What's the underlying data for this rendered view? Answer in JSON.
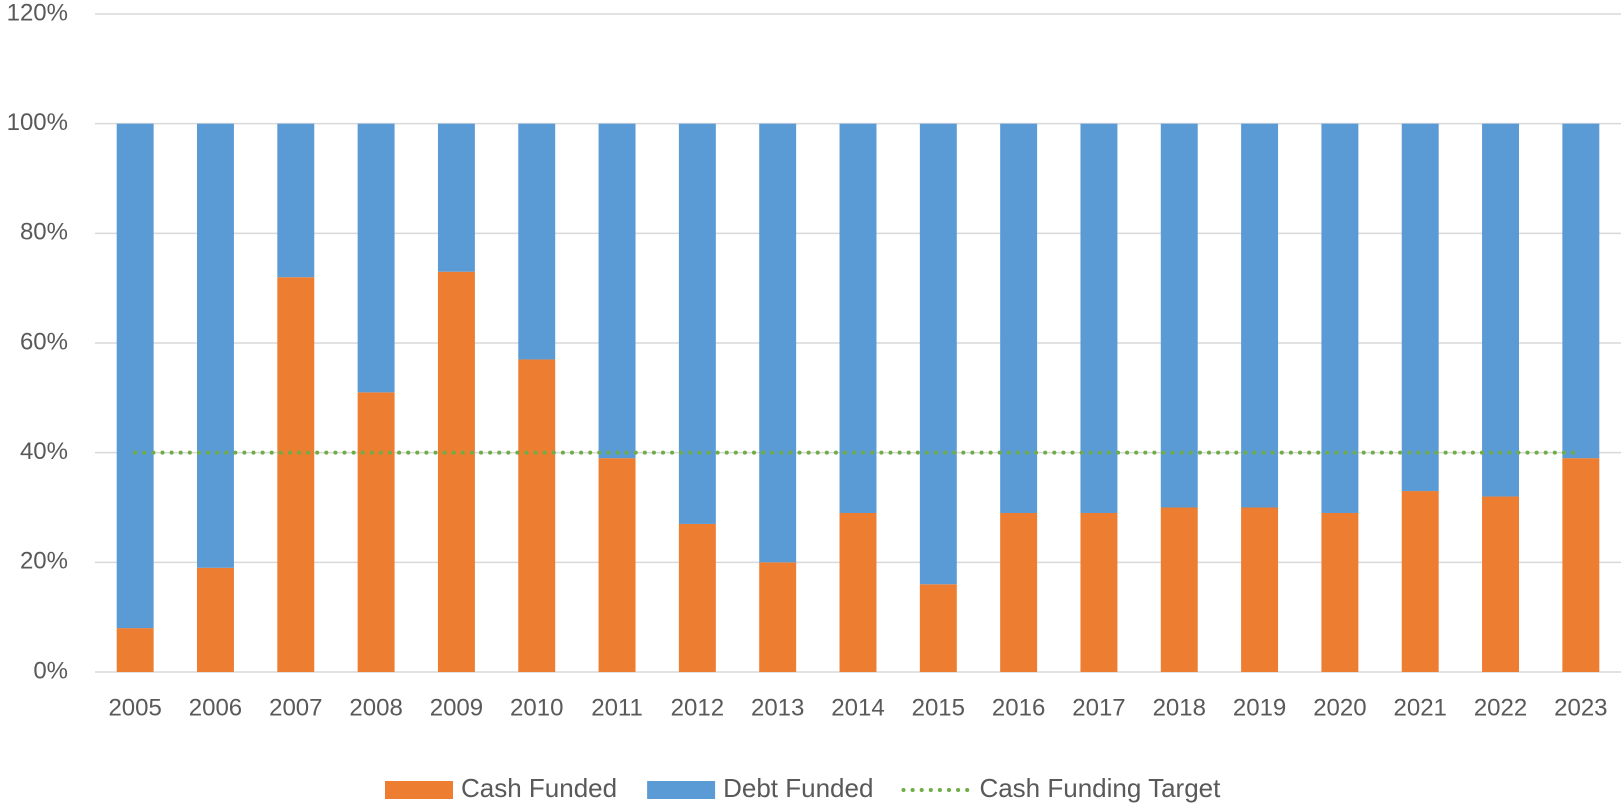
{
  "chart_data": {
    "type": "bar",
    "stacked": true,
    "categories": [
      "2005",
      "2006",
      "2007",
      "2008",
      "2009",
      "2010",
      "2011",
      "2012",
      "2013",
      "2014",
      "2015",
      "2016",
      "2017",
      "2018",
      "2019",
      "2020",
      "2021",
      "2022",
      "2023"
    ],
    "series": [
      {
        "name": "Cash Funded",
        "color": "#ed7d31",
        "values": [
          8,
          19,
          72,
          51,
          73,
          57,
          39,
          27,
          20,
          29,
          16,
          29,
          29,
          30,
          30,
          29,
          33,
          32,
          39
        ]
      },
      {
        "name": "Debt Funded",
        "color": "#5b9bd5",
        "values": [
          92,
          81,
          28,
          49,
          27,
          43,
          61,
          73,
          80,
          71,
          84,
          71,
          71,
          70,
          70,
          71,
          67,
          68,
          61
        ]
      },
      {
        "name": "Cash Funding Target",
        "color": "#70ad47",
        "type": "line",
        "values": [
          40,
          40,
          40,
          40,
          40,
          40,
          40,
          40,
          40,
          40,
          40,
          40,
          40,
          40,
          40,
          40,
          40,
          40,
          40
        ]
      }
    ],
    "ylim": [
      0,
      120
    ],
    "yticks": [
      {
        "value": 0,
        "label": "0%"
      },
      {
        "value": 20,
        "label": "20%"
      },
      {
        "value": 40,
        "label": "40%"
      },
      {
        "value": 60,
        "label": "60%"
      },
      {
        "value": 80,
        "label": "80%"
      },
      {
        "value": 100,
        "label": "100%"
      },
      {
        "value": 120,
        "label": "120%"
      }
    ],
    "grid": true,
    "legend": "bottom"
  }
}
